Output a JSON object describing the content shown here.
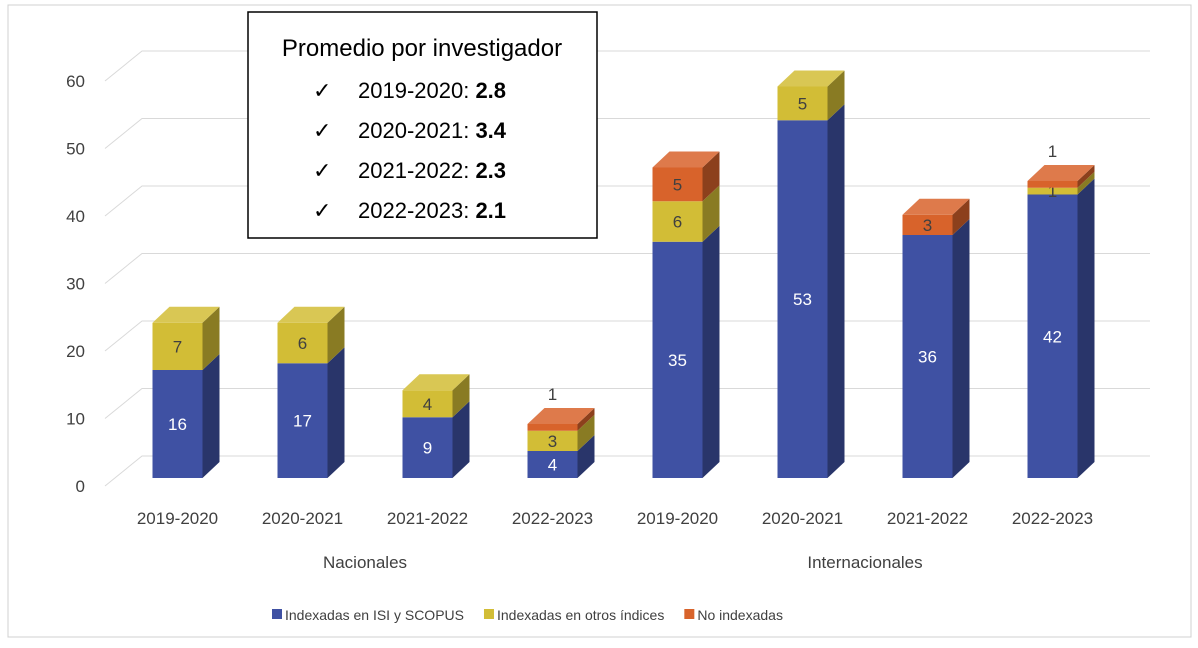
{
  "chart_data": {
    "type": "bar3d_stacked",
    "categories": [
      "2019-2020",
      "2020-2021",
      "2021-2022",
      "2022-2023",
      "2019-2020",
      "2020-2021",
      "2021-2022",
      "2022-2023"
    ],
    "groups": [
      {
        "label": "Nacionales",
        "count": 4
      },
      {
        "label": "Internacionales",
        "count": 4
      }
    ],
    "series": [
      {
        "name": "Indexadas en ISI y SCOPUS",
        "color": "#3f51a3",
        "values": [
          16,
          17,
          9,
          4,
          35,
          53,
          36,
          42
        ]
      },
      {
        "name": "Indexadas en otros índices",
        "color": "#d2bd36",
        "values": [
          7,
          6,
          4,
          3,
          6,
          5,
          null,
          1
        ]
      },
      {
        "name": "No indexadas",
        "color": "#d8632b",
        "values": [
          null,
          null,
          null,
          1,
          5,
          null,
          3,
          1
        ]
      }
    ],
    "ylim": [
      0,
      60
    ],
    "yticks": [
      0,
      10,
      20,
      30,
      40,
      50,
      60
    ],
    "grid": true,
    "annotation": {
      "title": "Promedio por investigador",
      "items": [
        {
          "label": "2019-2020: ",
          "value": 2.8
        },
        {
          "label": "2020-2021: ",
          "value": 3.4
        },
        {
          "label": "2021-2022: ",
          "value": 2.3
        },
        {
          "label": "2022-2023: ",
          "value": 2.1
        }
      ]
    }
  }
}
